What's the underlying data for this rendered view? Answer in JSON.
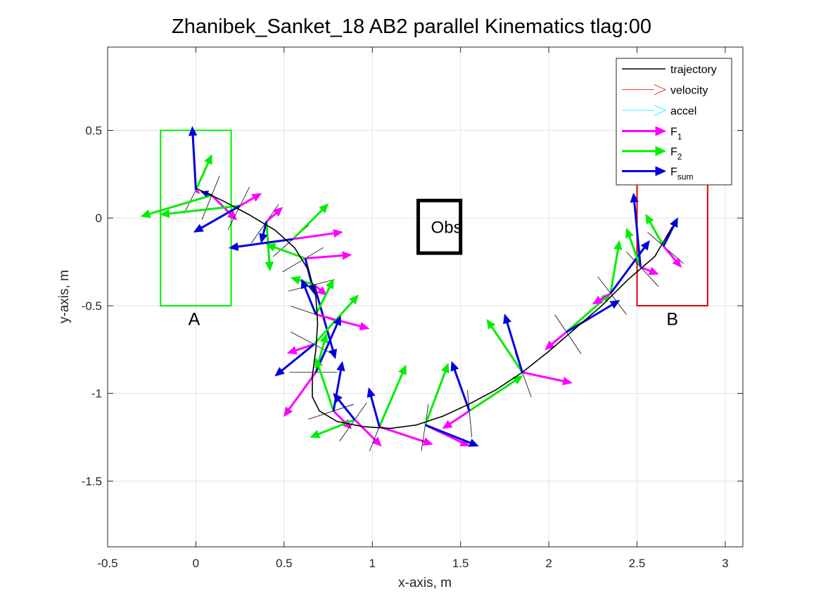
{
  "chart_data": {
    "type": "line",
    "title": "Zhanibek_Sanket_18    AB2    parallel    Kinematics tlag:00",
    "xlabel": "x-axis, m",
    "ylabel": "y-axis, m",
    "xlim": [
      -0.5,
      3.1
    ],
    "ylim": [
      -1.875,
      0.975
    ],
    "xticks": [
      -0.5,
      0,
      0.5,
      1,
      1.5,
      2,
      2.5,
      3
    ],
    "xtick_labels": [
      "-0.5",
      "0",
      "0.5",
      "1",
      "1.5",
      "2",
      "2.5",
      "3"
    ],
    "yticks": [
      0.5,
      0,
      -0.5,
      -1,
      -1.5
    ],
    "ytick_labels": [
      "0.5",
      "0",
      "-0.5",
      "-1",
      "-1.5"
    ],
    "grid": true,
    "legend_position": "top-right",
    "legend": [
      {
        "key": "trajectory",
        "label": "trajectory",
        "sub": "",
        "color": "#000000",
        "style": "line"
      },
      {
        "key": "velocity",
        "label": "velocity",
        "sub": "",
        "color": "#ff0000",
        "style": "thin-arrow"
      },
      {
        "key": "accel",
        "label": "accel",
        "sub": "",
        "color": "#00e5ff",
        "style": "thin-arrow"
      },
      {
        "key": "f1",
        "label": "F",
        "sub": "1",
        "color": "#ff00ff",
        "style": "thick-arrow"
      },
      {
        "key": "f2",
        "label": "F",
        "sub": "2",
        "color": "#00ee00",
        "style": "thick-arrow"
      },
      {
        "key": "fsum",
        "label": "F",
        "sub": "sum",
        "color": "#0000dd",
        "style": "thick-arrow"
      }
    ],
    "regions": [
      {
        "name": "A",
        "x": [
          -0.2,
          0.2
        ],
        "y": [
          -0.5,
          0.5
        ],
        "color": "#00ee00",
        "label_at": [
          -0.01,
          -0.61
        ]
      },
      {
        "name": "B",
        "x": [
          2.5,
          2.9
        ],
        "y": [
          -0.5,
          0.3
        ],
        "color": "#e00000",
        "label_at": [
          2.7,
          -0.61
        ]
      }
    ],
    "obstacle": {
      "label": "Obs",
      "x": [
        1.26,
        1.5
      ],
      "y": [
        -0.2,
        0.1
      ],
      "color": "#000000"
    },
    "trajectory": {
      "x": [
        0.0,
        0.15,
        0.3,
        0.45,
        0.56,
        0.64,
        0.68,
        0.69,
        0.68,
        0.66,
        0.66,
        0.7,
        0.8,
        0.95,
        1.1,
        1.25,
        1.4,
        1.55,
        1.7,
        1.85,
        2.0,
        2.15,
        2.3,
        2.45,
        2.6,
        2.7
      ],
      "y": [
        0.17,
        0.1,
        0.02,
        -0.07,
        -0.17,
        -0.3,
        -0.45,
        -0.6,
        -0.75,
        -0.9,
        -1.02,
        -1.1,
        -1.16,
        -1.19,
        -1.2,
        -1.18,
        -1.13,
        -1.06,
        -0.98,
        -0.88,
        -0.76,
        -0.63,
        -0.5,
        -0.35,
        -0.22,
        -0.05
      ]
    },
    "samples": [
      {
        "p": [
          0.0,
          0.16
        ],
        "v": [
          0.08,
          -0.04
        ],
        "a": [
          0.05,
          0.04
        ],
        "f1": [
          0.02,
          -0.02
        ],
        "f2": [
          0.09,
          0.2
        ],
        "fsum": [
          -0.02,
          0.36
        ]
      },
      {
        "p": [
          0.09,
          0.13
        ],
        "v": [
          0.1,
          -0.04
        ],
        "a": [
          0.06,
          0.05
        ],
        "f1": [
          0.14,
          -0.14
        ],
        "f2": [
          -0.4,
          -0.12
        ],
        "fsum": [
          -0.06,
          0.02
        ]
      },
      {
        "p": [
          0.25,
          0.07
        ],
        "v": [
          0.1,
          -0.05
        ],
        "a": [
          0.04,
          0.07
        ],
        "f1": [
          0.12,
          0.07
        ],
        "f2": [
          -0.45,
          -0.05
        ],
        "fsum": [
          -0.26,
          -0.15
        ]
      },
      {
        "p": [
          0.4,
          -0.02
        ],
        "v": [
          0.1,
          -0.07
        ],
        "a": [
          0.04,
          0.31
        ],
        "f1": [
          0.09,
          0.08
        ],
        "f2": [
          0.02,
          -0.28
        ],
        "fsum": [
          -0.03,
          -0.12
        ]
      },
      {
        "p": [
          0.55,
          -0.12
        ],
        "v": [
          0.08,
          -0.09
        ],
        "a": [
          -0.13,
          -0.06
        ],
        "f1": [
          0.28,
          0.04
        ],
        "f2": [
          0.2,
          0.2
        ],
        "fsum": [
          -0.36,
          -0.05
        ]
      },
      {
        "p": [
          0.62,
          -0.23
        ],
        "v": [
          0.06,
          -0.1
        ],
        "a": [
          0.02,
          -0.2
        ],
        "f1": [
          0.26,
          0.02
        ],
        "f2": [
          -0.22,
          0.08
        ],
        "fsum": [
          0.05,
          -0.2
        ]
      },
      {
        "p": [
          0.67,
          -0.38
        ],
        "v": [
          0.03,
          -0.12
        ],
        "a": [
          0.09,
          -0.16
        ],
        "f1": [
          0.07,
          -0.06
        ],
        "f2": [
          -0.13,
          0.04
        ],
        "fsum": [
          0.12,
          -0.42
        ]
      },
      {
        "p": [
          0.68,
          -0.55
        ],
        "v": [
          -0.04,
          -0.12
        ],
        "a": [
          -0.27,
          0.12
        ],
        "f1": [
          0.3,
          -0.08
        ],
        "f2": [
          0.1,
          0.2
        ],
        "fsum": [
          -0.08,
          0.2
        ]
      },
      {
        "p": [
          0.67,
          -0.72
        ],
        "v": [
          -0.08,
          -0.15
        ],
        "a": [
          0.1,
          -0.1
        ],
        "f1": [
          -0.15,
          -0.05
        ],
        "f2": [
          0.25,
          0.28
        ],
        "fsum": [
          -0.22,
          -0.18
        ]
      },
      {
        "p": [
          0.68,
          -0.88
        ],
        "v": [
          0.0,
          -0.2
        ],
        "a": [
          0.18,
          -0.12
        ],
        "f1": [
          -0.18,
          -0.25
        ],
        "f2": [
          0.06,
          0.22
        ],
        "fsum": [
          0.14,
          0.32
        ]
      },
      {
        "p": [
          0.78,
          -1.1
        ],
        "v": [
          0.06,
          -0.18
        ],
        "a": [
          0.12,
          0.12
        ],
        "f1": [
          0.1,
          -0.1
        ],
        "f2": [
          -0.1,
          0.3
        ],
        "fsum": [
          0.05,
          0.28
        ]
      },
      {
        "p": [
          0.9,
          -1.15
        ],
        "v": [
          0.1,
          -0.07
        ],
        "a": [
          0.06,
          0.06
        ],
        "f1": [
          0.15,
          -0.15
        ],
        "f2": [
          -0.25,
          -0.1
        ],
        "fsum": [
          -0.12,
          0.15
        ]
      },
      {
        "p": [
          1.04,
          -1.19
        ],
        "v": [
          0.15,
          -0.06
        ],
        "a": [
          -0.08,
          0.12
        ],
        "f1": [
          0.3,
          -0.1
        ],
        "f2": [
          0.15,
          0.35
        ],
        "fsum": [
          -0.06,
          0.22
        ]
      },
      {
        "p": [
          1.3,
          -1.18
        ],
        "v": [
          0.2,
          -0.03
        ],
        "a": [
          -0.08,
          0.1
        ],
        "f1": [
          0.25,
          -0.12
        ],
        "f2": [
          0.13,
          0.35
        ],
        "fsum": [
          0.3,
          -0.12
        ]
      },
      {
        "p": [
          1.55,
          -1.1
        ],
        "v": [
          0.22,
          0.02
        ],
        "a": [
          0.1,
          0.12
        ],
        "f1": [
          -0.15,
          -0.1
        ],
        "f2": [
          0.3,
          0.2
        ],
        "fsum": [
          -0.1,
          0.28
        ]
      },
      {
        "p": [
          1.85,
          -0.88
        ],
        "v": [
          0.14,
          0.05
        ],
        "a": [
          0.25,
          -0.05
        ],
        "f1": [
          0.28,
          -0.06
        ],
        "f2": [
          -0.2,
          0.3
        ],
        "fsum": [
          -0.1,
          0.33
        ]
      },
      {
        "p": [
          2.1,
          -0.65
        ],
        "v": [
          0.12,
          0.08
        ],
        "a": [
          -0.1,
          0.1
        ],
        "f1": [
          -0.12,
          -0.1
        ],
        "f2": [
          0.25,
          0.22
        ],
        "fsum": [
          0.3,
          0.18
        ]
      },
      {
        "p": [
          2.35,
          -0.43
        ],
        "v": [
          0.12,
          0.09
        ],
        "a": [
          0.03,
          0.3
        ],
        "f1": [
          -0.1,
          -0.06
        ],
        "f2": [
          0.05,
          0.3
        ],
        "fsum": [
          0.22,
          0.3
        ]
      },
      {
        "p": [
          2.52,
          -0.28
        ],
        "v": [
          0.12,
          0.11
        ],
        "a": [
          0.2,
          0.0
        ],
        "f1": [
          0.1,
          -0.04
        ],
        "f2": [
          -0.08,
          0.22
        ],
        "fsum": [
          -0.04,
          0.42
        ]
      },
      {
        "p": [
          2.65,
          -0.16
        ],
        "v": [
          0.07,
          0.08
        ],
        "a": [
          0.12,
          0.06
        ],
        "f1": [
          0.1,
          -0.12
        ],
        "f2": [
          -0.1,
          0.18
        ],
        "fsum": [
          0.08,
          0.16
        ]
      }
    ]
  }
}
